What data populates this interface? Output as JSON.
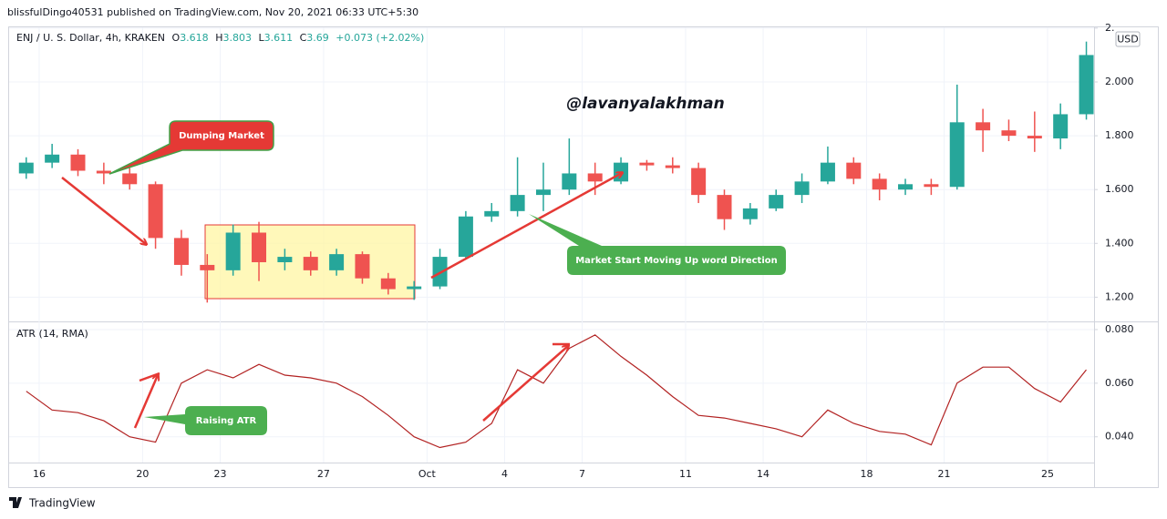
{
  "header": "blissfulDingo40531 published on TradingView.com, Nov 20, 2021 06:33 UTC+5:30",
  "footer": "TradingView",
  "chart_data": [
    {
      "type": "candlestick",
      "title": "ENJ / U. S. Dollar, 4h, KRAKEN",
      "ohlc_legend": [
        {
          "key": "O",
          "value": 3.618
        },
        {
          "key": "H",
          "value": 3.803
        },
        {
          "key": "L",
          "value": 3.611
        },
        {
          "key": "C",
          "value": 3.69
        }
      ],
      "change": "+0.073 (+2.02%)",
      "currency": "USD",
      "watermark": "@lavanyalakhman",
      "annotations": [
        "Dumping Market",
        "Market Start Moving Up word Direction"
      ],
      "categories": [
        null,
        "16",
        null,
        null,
        null,
        "20",
        null,
        null,
        "23",
        null,
        null,
        null,
        "27",
        null,
        null,
        null,
        "Oct",
        null,
        null,
        "4",
        null,
        null,
        "7",
        null,
        null,
        null,
        "11",
        null,
        null,
        "14",
        null,
        null,
        null,
        "18",
        null,
        null,
        "21",
        null,
        null,
        null,
        "25",
        null
      ],
      "open": [
        1.66,
        1.7,
        1.73,
        1.67,
        1.66,
        1.62,
        1.42,
        1.32,
        1.3,
        1.44,
        1.33,
        1.35,
        1.3,
        1.36,
        1.27,
        1.23,
        1.24,
        1.35,
        1.5,
        1.52,
        1.58,
        1.6,
        1.66,
        1.63,
        1.7,
        1.69,
        1.68,
        1.58,
        1.49,
        1.53,
        1.58,
        1.63,
        1.7,
        1.64,
        1.6,
        1.62,
        1.61,
        1.85,
        1.82,
        1.8,
        1.79,
        1.88
      ],
      "high": [
        1.72,
        1.77,
        1.75,
        1.7,
        1.68,
        1.63,
        1.45,
        1.36,
        1.47,
        1.48,
        1.38,
        1.37,
        1.38,
        1.37,
        1.29,
        1.26,
        1.38,
        1.52,
        1.55,
        1.72,
        1.7,
        1.79,
        1.7,
        1.72,
        1.71,
        1.72,
        1.7,
        1.6,
        1.55,
        1.6,
        1.66,
        1.76,
        1.72,
        1.66,
        1.64,
        1.64,
        1.99,
        1.9,
        1.86,
        1.89,
        1.92,
        2.15
      ],
      "low": [
        1.64,
        1.68,
        1.65,
        1.62,
        1.6,
        1.38,
        1.28,
        1.18,
        1.28,
        1.26,
        1.3,
        1.28,
        1.28,
        1.25,
        1.21,
        1.19,
        1.23,
        1.34,
        1.48,
        1.5,
        1.52,
        1.58,
        1.58,
        1.62,
        1.67,
        1.66,
        1.55,
        1.45,
        1.47,
        1.52,
        1.55,
        1.62,
        1.62,
        1.56,
        1.58,
        1.58,
        1.6,
        1.74,
        1.78,
        1.74,
        1.75,
        1.86
      ],
      "close": [
        1.7,
        1.73,
        1.67,
        1.66,
        1.62,
        1.42,
        1.32,
        1.3,
        1.44,
        1.33,
        1.35,
        1.3,
        1.36,
        1.27,
        1.23,
        1.24,
        1.35,
        1.5,
        1.52,
        1.58,
        1.6,
        1.66,
        1.63,
        1.7,
        1.69,
        1.68,
        1.58,
        1.49,
        1.53,
        1.58,
        1.63,
        1.7,
        1.64,
        1.6,
        1.62,
        1.61,
        1.85,
        1.82,
        1.8,
        1.79,
        1.88,
        2.1
      ],
      "up_color": "#26a69a",
      "down_color": "#ef5350",
      "ylim": [
        1.11,
        2.203
      ],
      "yticks": [
        {
          "value": 1.2,
          "label": "1.200"
        },
        {
          "value": 1.4,
          "label": "1.400"
        },
        {
          "value": 1.6,
          "label": "1.600"
        },
        {
          "value": 1.8,
          "label": "1.800"
        },
        {
          "value": 2.0,
          "label": "2.000"
        },
        {
          "value": 2.2,
          "label": "2."
        }
      ],
      "grid": true
    },
    {
      "type": "line",
      "title": "ATR (14, RMA)",
      "annotations": [
        "Raising ATR"
      ],
      "color": "#b22222",
      "values": [
        0.057,
        0.05,
        0.049,
        0.046,
        0.04,
        0.038,
        0.06,
        0.065,
        0.062,
        0.067,
        0.063,
        0.062,
        0.06,
        0.055,
        0.048,
        0.04,
        0.036,
        0.038,
        0.045,
        0.065,
        0.06,
        0.073,
        0.078,
        0.07,
        0.063,
        0.055,
        0.048,
        0.047,
        0.045,
        0.043,
        0.04,
        0.05,
        0.045,
        0.042,
        0.041,
        0.037,
        0.06,
        0.066,
        0.066,
        0.058,
        0.053,
        0.065
      ],
      "ylim": [
        0.0304,
        0.0827
      ],
      "yticks": [
        {
          "value": 0.04,
          "label": "0.040"
        },
        {
          "value": 0.06,
          "label": "0.060"
        },
        {
          "value": 0.08,
          "label": "0.080"
        }
      ],
      "grid": true
    }
  ]
}
